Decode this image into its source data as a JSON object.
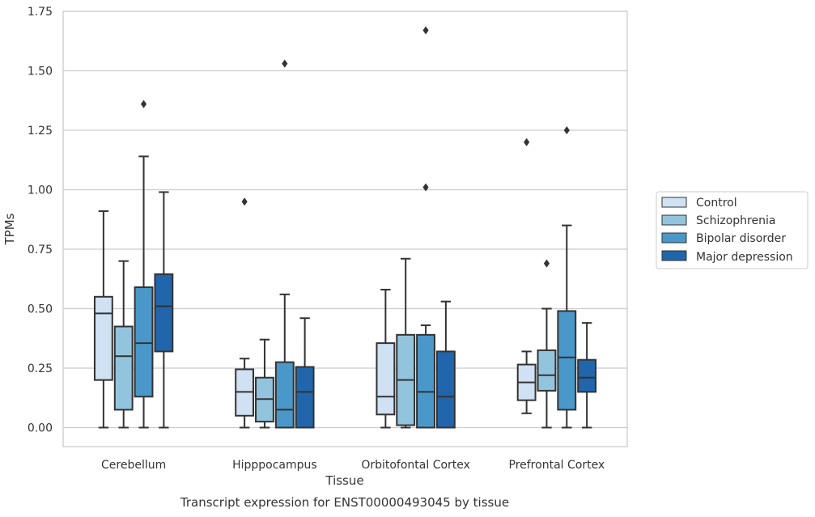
{
  "chart_data": {
    "type": "boxplot",
    "caption": "Transcript expression for ENST00000493045 by tissue",
    "xlabel": "Tissue",
    "ylabel": "TPMs",
    "ylim": [
      -0.08,
      1.75
    ],
    "yticks": [
      "0.00",
      "0.25",
      "0.50",
      "0.75",
      "1.00",
      "1.25",
      "1.50",
      "1.75"
    ],
    "grid": "horizontal",
    "legend_position": "right",
    "categories": [
      "Cerebellum",
      "Hipppocampus",
      "Orbitofontal Cortex",
      "Prefrontal Cortex"
    ],
    "series": [
      {
        "name": "Control",
        "color": "#cfe1f2",
        "boxes": [
          {
            "whislo": 0.0,
            "q1": 0.2,
            "med": 0.48,
            "q3": 0.55,
            "whishi": 0.91,
            "fliers": []
          },
          {
            "whislo": 0.0,
            "q1": 0.05,
            "med": 0.15,
            "q3": 0.245,
            "whishi": 0.29,
            "fliers": [
              0.95
            ]
          },
          {
            "whislo": 0.0,
            "q1": 0.055,
            "med": 0.13,
            "q3": 0.355,
            "whishi": 0.58,
            "fliers": []
          },
          {
            "whislo": 0.06,
            "q1": 0.115,
            "med": 0.19,
            "q3": 0.265,
            "whishi": 0.32,
            "fliers": [
              1.2
            ]
          }
        ]
      },
      {
        "name": "Schizophrenia",
        "color": "#93c4de",
        "boxes": [
          {
            "whislo": 0.0,
            "q1": 0.075,
            "med": 0.3,
            "q3": 0.425,
            "whishi": 0.7,
            "fliers": []
          },
          {
            "whislo": 0.0,
            "q1": 0.025,
            "med": 0.12,
            "q3": 0.21,
            "whishi": 0.37,
            "fliers": []
          },
          {
            "whislo": 0.0,
            "q1": 0.01,
            "med": 0.2,
            "q3": 0.39,
            "whishi": 0.71,
            "fliers": []
          },
          {
            "whislo": 0.0,
            "q1": 0.155,
            "med": 0.22,
            "q3": 0.325,
            "whishi": 0.5,
            "fliers": [
              0.69
            ]
          }
        ]
      },
      {
        "name": "Bipolar disorder",
        "color": "#4a98c9",
        "boxes": [
          {
            "whislo": 0.0,
            "q1": 0.13,
            "med": 0.355,
            "q3": 0.59,
            "whishi": 1.14,
            "fliers": [
              1.36
            ]
          },
          {
            "whislo": 0.0,
            "q1": 0.0,
            "med": 0.075,
            "q3": 0.275,
            "whishi": 0.56,
            "fliers": [
              1.53
            ]
          },
          {
            "whislo": 0.0,
            "q1": 0.0,
            "med": 0.15,
            "q3": 0.39,
            "whishi": 0.43,
            "fliers": [
              1.67,
              1.01
            ]
          },
          {
            "whislo": 0.0,
            "q1": 0.075,
            "med": 0.295,
            "q3": 0.49,
            "whishi": 0.85,
            "fliers": [
              1.25
            ]
          }
        ]
      },
      {
        "name": "Major depression",
        "color": "#2166ac",
        "boxes": [
          {
            "whislo": 0.0,
            "q1": 0.32,
            "med": 0.51,
            "q3": 0.645,
            "whishi": 0.99,
            "fliers": []
          },
          {
            "whislo": 0.0,
            "q1": 0.0,
            "med": 0.15,
            "q3": 0.255,
            "whishi": 0.46,
            "fliers": []
          },
          {
            "whislo": 0.0,
            "q1": 0.0,
            "med": 0.13,
            "q3": 0.32,
            "whishi": 0.53,
            "fliers": []
          },
          {
            "whislo": 0.0,
            "q1": 0.15,
            "med": 0.21,
            "q3": 0.285,
            "whishi": 0.44,
            "fliers": []
          }
        ]
      }
    ]
  }
}
